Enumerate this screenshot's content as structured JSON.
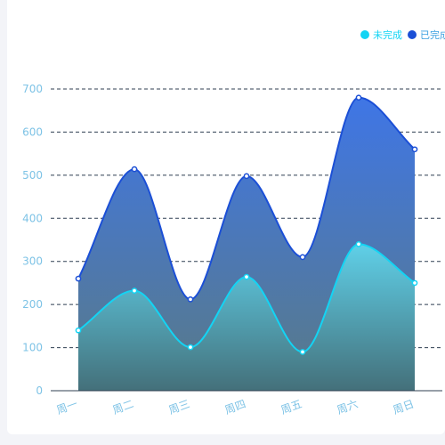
{
  "chart_data": {
    "type": "area",
    "title": "",
    "xlabel": "",
    "ylabel": "",
    "categories": [
      "周一",
      "周二",
      "周三",
      "周四",
      "周五",
      "周六",
      "周日"
    ],
    "yticks": [
      0,
      100,
      200,
      300,
      400,
      500,
      600,
      700
    ],
    "ylim": [
      0,
      700
    ],
    "grid": true,
    "legend_position": "top-right",
    "series": [
      {
        "name": "未完成",
        "values": [
          140,
          232,
          101,
          264,
          90,
          340,
          250
        ],
        "color": "#13d4f4"
      },
      {
        "name": "已完成",
        "values": [
          260,
          514,
          212,
          498,
          310,
          680,
          560
        ],
        "color": "#1b4fd6"
      }
    ]
  }
}
